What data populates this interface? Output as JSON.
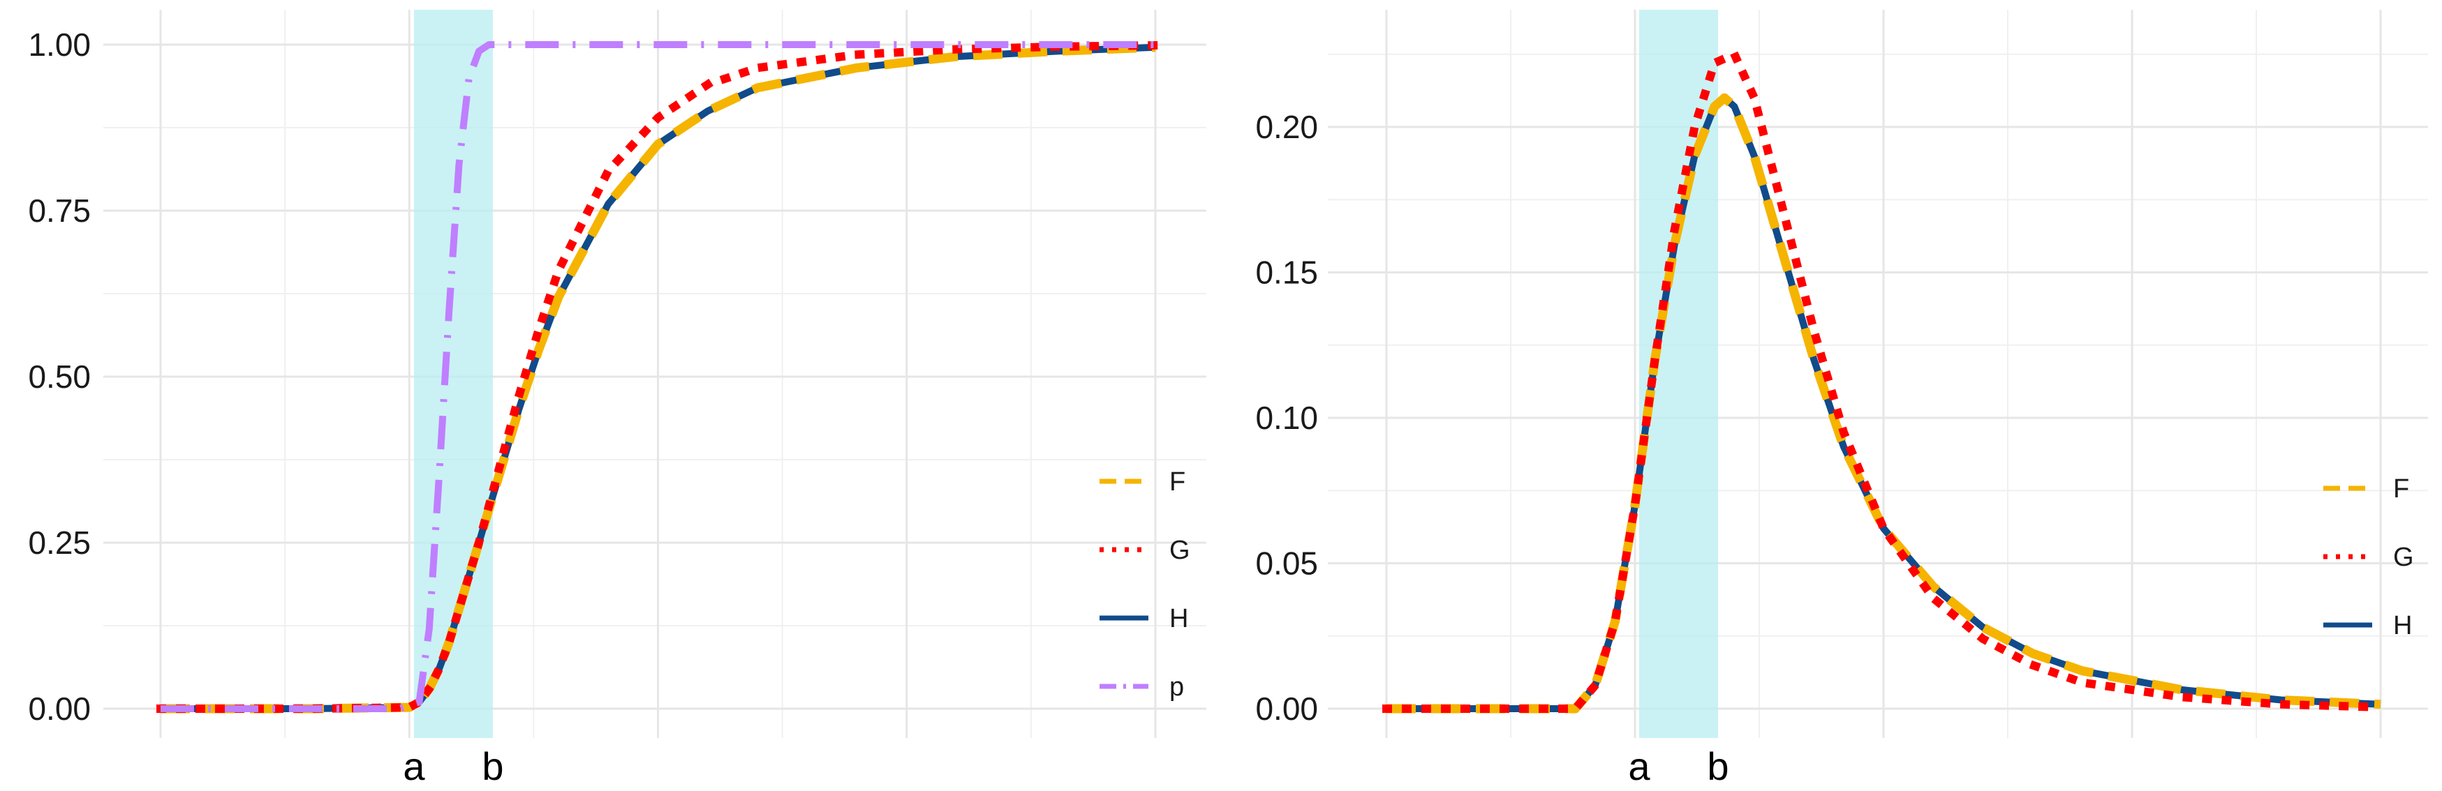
{
  "chart_data": [
    {
      "type": "line",
      "title": "",
      "xlabel": "",
      "ylabel": "",
      "ylim": [
        0,
        1
      ],
      "y_ticks": [
        "0.00",
        "0.25",
        "0.50",
        "0.75",
        "1.00"
      ],
      "x_ticks": [
        "a",
        "b"
      ],
      "shaded_interval": [
        "a",
        "b"
      ],
      "grid": true,
      "legend_position": "right",
      "colors": {
        "F": "#f5b400",
        "G": "#ff0000",
        "H": "#114b8a",
        "p": "#bf7fff",
        "band": "#b8eef0"
      },
      "series": [
        {
          "name": "F",
          "style": "dashed",
          "x": [
            0,
            0.15,
            0.25,
            0.26,
            0.27,
            0.28,
            0.29,
            0.3,
            0.32,
            0.34,
            0.36,
            0.38,
            0.4,
            0.45,
            0.5,
            0.55,
            0.6,
            0.7,
            0.8,
            0.9,
            1.0
          ],
          "y": [
            0,
            0,
            0.002,
            0.01,
            0.03,
            0.06,
            0.1,
            0.15,
            0.25,
            0.35,
            0.45,
            0.54,
            0.62,
            0.76,
            0.85,
            0.9,
            0.935,
            0.965,
            0.982,
            0.99,
            0.996
          ]
        },
        {
          "name": "G",
          "style": "dotted",
          "x": [
            0,
            0.15,
            0.25,
            0.26,
            0.27,
            0.28,
            0.29,
            0.3,
            0.32,
            0.34,
            0.36,
            0.38,
            0.4,
            0.45,
            0.5,
            0.55,
            0.6,
            0.7,
            0.8,
            0.9,
            1.0
          ],
          "y": [
            0,
            0,
            0.002,
            0.01,
            0.03,
            0.06,
            0.1,
            0.15,
            0.25,
            0.36,
            0.47,
            0.57,
            0.66,
            0.81,
            0.89,
            0.94,
            0.965,
            0.985,
            0.993,
            0.997,
            0.999
          ]
        },
        {
          "name": "H",
          "style": "solid",
          "x": [
            0,
            0.15,
            0.25,
            0.26,
            0.27,
            0.28,
            0.29,
            0.3,
            0.32,
            0.34,
            0.36,
            0.38,
            0.4,
            0.45,
            0.5,
            0.55,
            0.6,
            0.7,
            0.8,
            0.9,
            1.0
          ],
          "y": [
            0,
            0,
            0.002,
            0.01,
            0.03,
            0.06,
            0.1,
            0.15,
            0.25,
            0.35,
            0.45,
            0.54,
            0.62,
            0.76,
            0.85,
            0.9,
            0.935,
            0.965,
            0.982,
            0.99,
            0.996
          ]
        },
        {
          "name": "p",
          "style": "dashdot",
          "x": [
            0,
            0.2,
            0.24,
            0.26,
            0.27,
            0.28,
            0.29,
            0.3,
            0.31,
            0.32,
            0.33,
            0.35,
            0.4,
            0.6,
            0.8,
            1.0
          ],
          "y": [
            0,
            0,
            0,
            0.01,
            0.12,
            0.35,
            0.6,
            0.82,
            0.95,
            0.99,
            1.0,
            1.0,
            1.0,
            1.0,
            1.0,
            1.0
          ]
        }
      ]
    },
    {
      "type": "line",
      "title": "",
      "xlabel": "",
      "ylabel": "",
      "ylim": [
        0,
        0.23
      ],
      "y_ticks": [
        "0.00",
        "0.05",
        "0.10",
        "0.15",
        "0.20"
      ],
      "x_ticks": [
        "a",
        "b"
      ],
      "shaded_interval": [
        "a",
        "b"
      ],
      "grid": true,
      "legend_position": "right",
      "colors": {
        "F": "#f5b400",
        "G": "#ff0000",
        "H": "#114b8a",
        "band": "#b8eef0"
      },
      "series": [
        {
          "name": "F",
          "style": "dashed",
          "x": [
            0,
            0.15,
            0.19,
            0.21,
            0.23,
            0.25,
            0.27,
            0.29,
            0.31,
            0.33,
            0.34,
            0.35,
            0.37,
            0.4,
            0.43,
            0.46,
            0.5,
            0.55,
            0.6,
            0.65,
            0.7,
            0.8,
            0.9,
            1.0
          ],
          "y": [
            0,
            0,
            0.0,
            0.008,
            0.03,
            0.07,
            0.12,
            0.16,
            0.19,
            0.207,
            0.21,
            0.207,
            0.19,
            0.155,
            0.12,
            0.09,
            0.062,
            0.042,
            0.028,
            0.019,
            0.013,
            0.0065,
            0.003,
            0.0015
          ]
        },
        {
          "name": "G",
          "style": "dotted",
          "x": [
            0,
            0.15,
            0.19,
            0.21,
            0.23,
            0.25,
            0.27,
            0.29,
            0.31,
            0.33,
            0.35,
            0.37,
            0.4,
            0.43,
            0.46,
            0.5,
            0.55,
            0.6,
            0.65,
            0.7,
            0.8,
            0.9,
            1.0
          ],
          "y": [
            0,
            0,
            0.0,
            0.008,
            0.03,
            0.07,
            0.12,
            0.165,
            0.2,
            0.222,
            0.225,
            0.21,
            0.17,
            0.13,
            0.095,
            0.062,
            0.038,
            0.024,
            0.015,
            0.009,
            0.004,
            0.0015,
            0.0005
          ]
        },
        {
          "name": "H",
          "style": "solid",
          "x": [
            0,
            0.15,
            0.19,
            0.21,
            0.23,
            0.25,
            0.27,
            0.29,
            0.31,
            0.33,
            0.34,
            0.35,
            0.37,
            0.4,
            0.43,
            0.46,
            0.5,
            0.55,
            0.6,
            0.65,
            0.7,
            0.8,
            0.9,
            1.0
          ],
          "y": [
            0,
            0,
            0.0,
            0.008,
            0.03,
            0.07,
            0.12,
            0.16,
            0.19,
            0.207,
            0.21,
            0.207,
            0.19,
            0.155,
            0.12,
            0.09,
            0.062,
            0.042,
            0.028,
            0.019,
            0.013,
            0.0065,
            0.003,
            0.0015
          ]
        }
      ]
    }
  ]
}
